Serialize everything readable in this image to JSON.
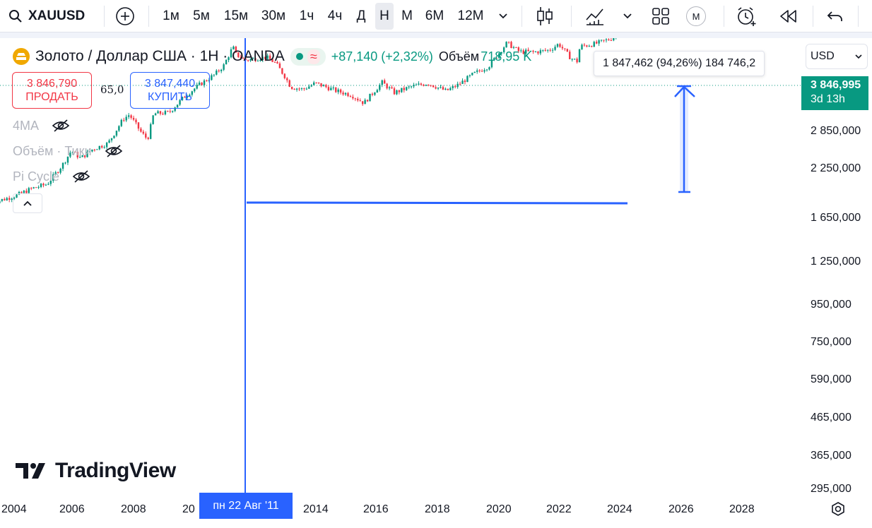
{
  "toolbar": {
    "symbol": "XAUUSD",
    "intervals": [
      "1м",
      "5м",
      "15м",
      "30м",
      "1ч",
      "4ч",
      "Д",
      "Н",
      "М",
      "6М",
      "12М"
    ],
    "active_interval": "Н",
    "indicators_badge": "M"
  },
  "legend": {
    "title": "Золото / Доллар США · 1Н · OANDA",
    "wave": "≈",
    "change": "+87,140 (+2,32%)",
    "volume_label": "Объём",
    "volume_value": "718,95 K"
  },
  "trade": {
    "sell_price": "3 846,790",
    "sell_label": "ПРОДАТЬ",
    "spread": "65,0",
    "buy_price": "3 847,440",
    "buy_label": "КУПИТЬ"
  },
  "indicators": [
    {
      "label": "4MA"
    },
    {
      "label": "Объём · Тики"
    },
    {
      "label": "Pi Cycle"
    }
  ],
  "currency": "USD",
  "last_price": {
    "value": "3 846,995",
    "countdown": "3d 13h"
  },
  "measure": {
    "text": "1 847,462 (94,26%) 184 746,2"
  },
  "crosshair": {
    "date": "пн 22 Авг '11"
  },
  "price_axis": [
    "2 850,000",
    "2 250,000",
    "1 650,000",
    "1 250,000",
    "950,000",
    "750,000",
    "590,000",
    "465,000",
    "365,000",
    "295,000"
  ],
  "time_axis": [
    "2004",
    "2006",
    "2008",
    "20",
    "2014",
    "2016",
    "2018",
    "2020",
    "2022",
    "2024",
    "2026",
    "2028"
  ],
  "watermark": "TradingView",
  "colors": {
    "up": "#089981",
    "down": "#f23645",
    "accent": "#2962ff"
  },
  "chart_data": {
    "type": "line",
    "x": [
      2003.7,
      2004.5,
      2005,
      2005.5,
      2006,
      2006.3,
      2006.6,
      2007,
      2007.5,
      2008,
      2008.2,
      2008.6,
      2008.8,
      2009,
      2009.5,
      2010,
      2010.5,
      2011,
      2011.3,
      2011.6,
      2011.7,
      2012,
      2012.7,
      2013,
      2013.3,
      2013.5,
      2013.9,
      2014.3,
      2014.6,
      2015,
      2015.5,
      2015.9,
      2016.5,
      2016.9,
      2017.5,
      2018,
      2018.6,
      2019,
      2019.5,
      2020,
      2020.6,
      2021,
      2021.5,
      2022,
      2022.3,
      2022.7,
      2022.9,
      2023,
      2023.5,
      2024,
      2024.5,
      2025,
      2025.5,
      2025.8
    ],
    "y": [
      380,
      410,
      440,
      460,
      560,
      650,
      600,
      660,
      700,
      900,
      940,
      780,
      730,
      950,
      960,
      1130,
      1280,
      1420,
      1560,
      1890,
      1750,
      1650,
      1700,
      1600,
      1400,
      1250,
      1220,
      1300,
      1260,
      1200,
      1150,
      1060,
      1310,
      1180,
      1260,
      1300,
      1200,
      1280,
      1430,
      1550,
      1970,
      1800,
      1790,
      1830,
      1950,
      1680,
      1630,
      1900,
      1950,
      2050,
      2350,
      2700,
      3300,
      3847
    ],
    "ylabel": "",
    "xlabel": "",
    "yscale": "log",
    "measure_annotation": {
      "from": 1999,
      "to": 3847,
      "delta": "1 847,462 (94,26%)"
    },
    "resistance_level": 1840
  }
}
